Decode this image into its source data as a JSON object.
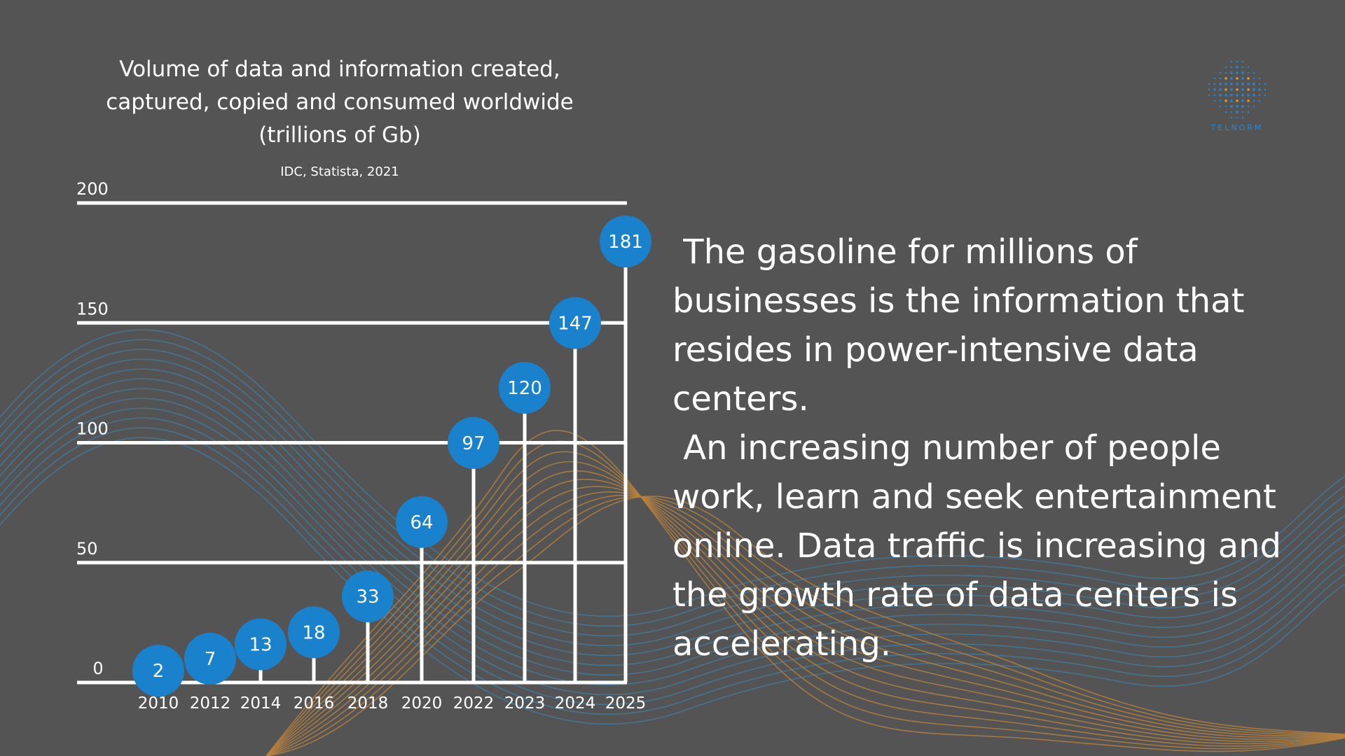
{
  "chart_data": {
    "type": "bar",
    "title": "Volume of data and information created, captured, copied and consumed worldwide (trillions of Gb)",
    "source": "IDC, Statista, 2021",
    "categories": [
      "2010",
      "2012",
      "2014",
      "2016",
      "2018",
      "2020",
      "2022",
      "2023",
      "2024",
      "2025"
    ],
    "values": [
      2,
      7,
      13,
      18,
      33,
      64,
      97,
      120,
      147,
      181
    ],
    "yticks": [
      0,
      50,
      100,
      150,
      200
    ],
    "ylim": [
      0,
      200
    ],
    "grid": true,
    "data_labels": true,
    "colors": {
      "marker": "#1a82cc",
      "lines": "#ffffff",
      "background": "#545454"
    }
  },
  "body_text": {
    "paragraph_1": " The gasoline for millions of businesses is the information that resides in power-intensive data centers.",
    "paragraph_2": " An increasing number of people work, learn and seek entertainment online. Data traffic is increasing and the growth rate of data centers is accelerating."
  },
  "logo": {
    "text": "TELNORM",
    "icon": "dot-grid-logo-icon",
    "colors": {
      "primary": "#2a86cf",
      "accent": "#e39a2e"
    }
  },
  "decoration": {
    "wave_colors": [
      "#3f7fa6",
      "#b9823d"
    ]
  }
}
